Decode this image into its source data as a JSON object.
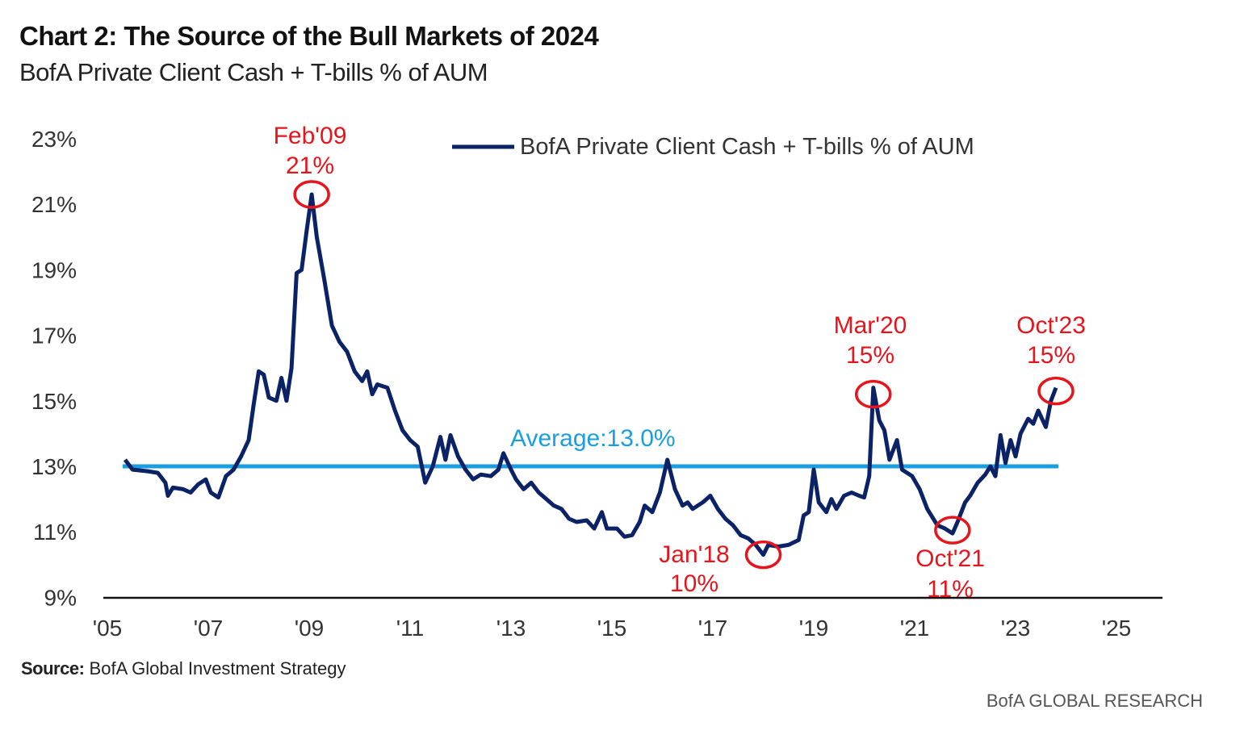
{
  "title": "Chart 2: The Source of the Bull Markets of 2024",
  "subtitle": "BofA Private Client Cash + T-bills % of AUM",
  "source_label": "Source:",
  "source_text": "BofA Global Investment Strategy",
  "brand": "BofA GLOBAL RESEARCH",
  "chart_data": {
    "type": "line",
    "xlabel": "",
    "ylabel": "",
    "xlim": [
      2005,
      2026
    ],
    "ylim": [
      9,
      23
    ],
    "x_ticks": [
      "'05",
      "'07",
      "'09",
      "'11",
      "'13",
      "'15",
      "'17",
      "'19",
      "'21",
      "'23",
      "'25"
    ],
    "x_tick_values": [
      2005,
      2007,
      2009,
      2011,
      2013,
      2015,
      2017,
      2019,
      2021,
      2023,
      2025
    ],
    "y_ticks": [
      "9%",
      "11%",
      "13%",
      "15%",
      "17%",
      "19%",
      "21%",
      "23%"
    ],
    "y_tick_values": [
      9,
      11,
      13,
      15,
      17,
      19,
      21,
      23
    ],
    "grid": false,
    "legend_position": "top-center",
    "colors": {
      "series": "#0b2266",
      "average": "#1a9ee0",
      "annotation": "#e8141c"
    },
    "series": [
      {
        "name": "BofA Private Client Cash + T-bills % of AUM",
        "x": [
          2005.35,
          2005.5,
          2005.8,
          2006.0,
          2006.15,
          2006.2,
          2006.3,
          2006.5,
          2006.65,
          2006.8,
          2006.95,
          2007.05,
          2007.2,
          2007.35,
          2007.5,
          2007.65,
          2007.8,
          2007.9,
          2008.0,
          2008.1,
          2008.2,
          2008.35,
          2008.45,
          2008.55,
          2008.65,
          2008.75,
          2008.85,
          2008.95,
          2009.05,
          2009.15,
          2009.3,
          2009.45,
          2009.6,
          2009.75,
          2009.9,
          2010.05,
          2010.15,
          2010.25,
          2010.35,
          2010.55,
          2010.7,
          2010.85,
          2011.0,
          2011.15,
          2011.3,
          2011.45,
          2011.6,
          2011.7,
          2011.8,
          2011.95,
          2012.1,
          2012.25,
          2012.4,
          2012.6,
          2012.75,
          2012.85,
          2013.0,
          2013.1,
          2013.25,
          2013.4,
          2013.55,
          2013.7,
          2013.85,
          2014.0,
          2014.15,
          2014.3,
          2014.5,
          2014.65,
          2014.8,
          2014.9,
          2015.1,
          2015.25,
          2015.4,
          2015.55,
          2015.65,
          2015.8,
          2015.95,
          2016.1,
          2016.25,
          2016.4,
          2016.5,
          2016.6,
          2016.8,
          2016.95,
          2017.1,
          2017.25,
          2017.4,
          2017.55,
          2017.7,
          2017.85,
          2018.0,
          2018.1,
          2018.3,
          2018.5,
          2018.7,
          2018.8,
          2018.9,
          2019.0,
          2019.1,
          2019.25,
          2019.35,
          2019.45,
          2019.6,
          2019.75,
          2019.9,
          2020.0,
          2020.1,
          2020.18,
          2020.3,
          2020.4,
          2020.5,
          2020.65,
          2020.75,
          2020.95,
          2021.1,
          2021.25,
          2021.45,
          2021.6,
          2021.75,
          2021.85,
          2022.0,
          2022.1,
          2022.25,
          2022.4,
          2022.5,
          2022.6,
          2022.7,
          2022.8,
          2022.9,
          2023.0,
          2023.1,
          2023.25,
          2023.35,
          2023.45,
          2023.6,
          2023.7,
          2023.8
        ],
        "values": [
          13.2,
          12.9,
          12.85,
          12.8,
          12.5,
          12.1,
          12.35,
          12.3,
          12.2,
          12.45,
          12.6,
          12.2,
          12.05,
          12.7,
          12.9,
          13.3,
          13.8,
          14.9,
          15.9,
          15.8,
          15.1,
          15.0,
          15.7,
          15.0,
          16.0,
          18.9,
          19.0,
          20.2,
          21.3,
          20.0,
          18.7,
          17.3,
          16.8,
          16.5,
          15.9,
          15.6,
          15.9,
          15.2,
          15.5,
          15.4,
          14.7,
          14.1,
          13.8,
          13.6,
          12.5,
          13.0,
          13.9,
          13.2,
          13.95,
          13.3,
          12.9,
          12.6,
          12.75,
          12.7,
          12.9,
          13.4,
          12.9,
          12.6,
          12.3,
          12.5,
          12.2,
          12.0,
          11.8,
          11.7,
          11.4,
          11.3,
          11.35,
          11.1,
          11.6,
          11.1,
          11.1,
          10.85,
          10.9,
          11.3,
          11.8,
          11.6,
          12.2,
          13.2,
          12.3,
          11.8,
          11.9,
          11.7,
          11.9,
          12.1,
          11.7,
          11.4,
          11.2,
          10.9,
          10.8,
          10.6,
          10.3,
          10.6,
          10.55,
          10.6,
          10.75,
          11.5,
          11.6,
          12.9,
          11.9,
          11.6,
          12.0,
          11.7,
          12.1,
          12.2,
          12.1,
          12.05,
          12.7,
          15.4,
          14.4,
          14.1,
          13.2,
          13.8,
          12.9,
          12.7,
          12.3,
          11.7,
          11.2,
          11.1,
          10.95,
          11.3,
          11.9,
          12.1,
          12.5,
          12.75,
          13.0,
          12.7,
          13.95,
          13.1,
          13.8,
          13.3,
          14.0,
          14.45,
          14.3,
          14.7,
          14.2,
          15.0,
          15.4
        ]
      }
    ],
    "average": {
      "label": "Average:13.0%",
      "value": 13.0,
      "x_range": [
        2005.35,
        2023.8
      ]
    },
    "annotations": [
      {
        "date": "Feb'09",
        "value_label": "21%",
        "x": 2009.05,
        "y": 21.3,
        "text_pos": "above"
      },
      {
        "date": "Jan'18",
        "value_label": "10%",
        "x": 2018.0,
        "y": 10.3,
        "text_pos": "left-below"
      },
      {
        "date": "Mar'20",
        "value_label": "15%",
        "x": 2020.18,
        "y": 15.2,
        "text_pos": "above"
      },
      {
        "date": "Oct'21",
        "value_label": "11%",
        "x": 2021.75,
        "y": 11.05,
        "text_pos": "below"
      },
      {
        "date": "Oct'23",
        "value_label": "15%",
        "x": 2023.8,
        "y": 15.3,
        "text_pos": "above"
      }
    ]
  }
}
